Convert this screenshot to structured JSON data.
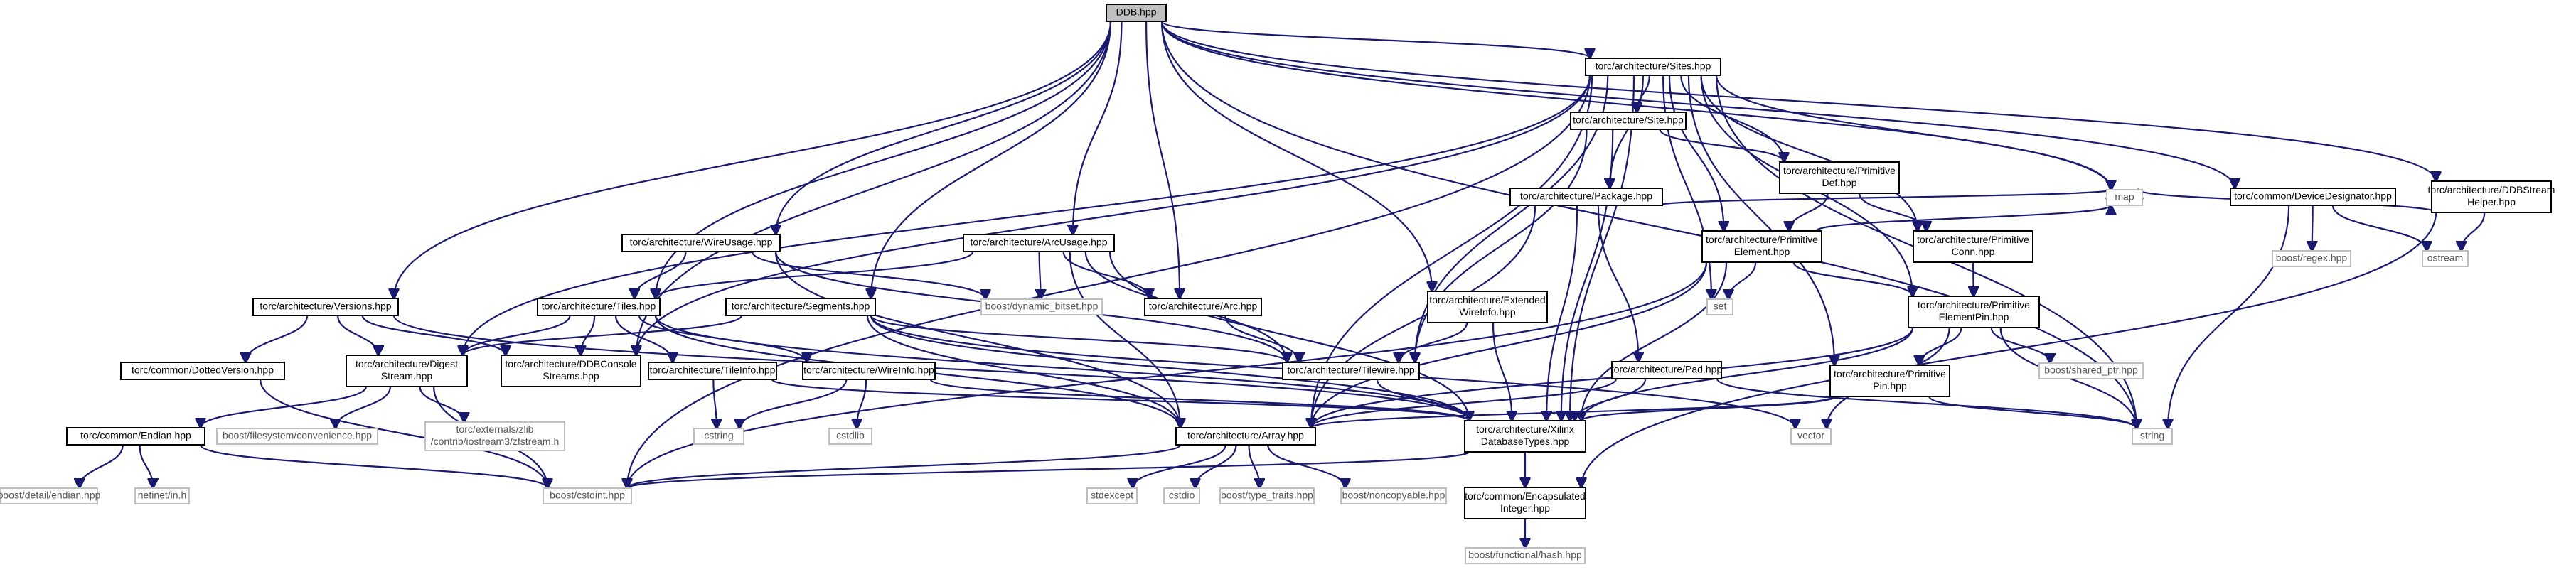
{
  "graph_title": "DDB.hpp",
  "colors": {
    "edge": "#191970",
    "root_fill": "#bfbfbf",
    "node_border": "#000000",
    "external_border": "#bfbfbf"
  },
  "nodes": {
    "ddb": "DDB.hpp",
    "sites": "torc/architecture/Sites.hpp",
    "site": "torc/architecture/Site.hpp",
    "primdef": [
      "torc/architecture/Primitive",
      "Def.hpp"
    ],
    "primelem": [
      "torc/architecture/Primitive",
      "Element.hpp"
    ],
    "primconn": [
      "torc/architecture/Primitive",
      "Conn.hpp"
    ],
    "primelempin": [
      "torc/architecture/Primitive",
      "ElementPin.hpp"
    ],
    "primpin": [
      "torc/architecture/Primitive",
      "Pin.hpp"
    ],
    "package": "torc/architecture/Package.hpp",
    "pad": "torc/architecture/Pad.hpp",
    "devdesig": "torc/common/DeviceDesignator.hpp",
    "ddbstream": [
      "torc/architecture/DDBStream",
      "Helper.hpp"
    ],
    "versions": "torc/architecture/Versions.hpp",
    "wireusage": "torc/architecture/WireUsage.hpp",
    "arcusage": "torc/architecture/ArcUsage.hpp",
    "segments": "torc/architecture/Segments.hpp",
    "extwire": [
      "torc/architecture/Extended",
      "WireInfo.hpp"
    ],
    "tiles": "torc/architecture/Tiles.hpp",
    "arc": "torc/architecture/Arc.hpp",
    "tileinfo": "torc/architecture/TileInfo.hpp",
    "wireinfo": "torc/architecture/WireInfo.hpp",
    "tilewire": "torc/architecture/Tilewire.hpp",
    "dotted": "torc/common/DottedVersion.hpp",
    "digest": [
      "torc/architecture/Digest",
      "Stream.hpp"
    ],
    "ddbconsole": [
      "torc/architecture/DDBConsole",
      "Streams.hpp"
    ],
    "endian": "torc/common/Endian.hpp",
    "array": "torc/architecture/Array.hpp",
    "xilinx": [
      "torc/architecture/Xilinx",
      "DatabaseTypes.hpp"
    ],
    "encap": [
      "torc/common/Encapsulated",
      "Integer.hpp"
    ],
    "cstdint": "boost/cstdint.hpp",
    "hash": "boost/functional/hash.hpp",
    "map": "map",
    "set": "set",
    "string": "string",
    "vector": "vector",
    "ostream": "ostream",
    "regex": "boost/regex.hpp",
    "dynbitset": "boost/dynamic_bitset.hpp",
    "sharedptr": "boost/shared_ptr.hpp",
    "fsconv": "boost/filesystem/convenience.hpp",
    "zfstream": [
      "torc/externals/zlib",
      "/contrib/iostream3/zfstream.h"
    ],
    "cstring": "cstring",
    "cstdlib": "cstdlib",
    "stdexcept": "stdexcept",
    "cstdio": "cstdio",
    "typetraits": "boost/type_traits.hpp",
    "noncopyable": "boost/noncopyable.hpp",
    "detailendian": "boost/detail/endian.hpp",
    "netinet": "netinet/in.h"
  }
}
